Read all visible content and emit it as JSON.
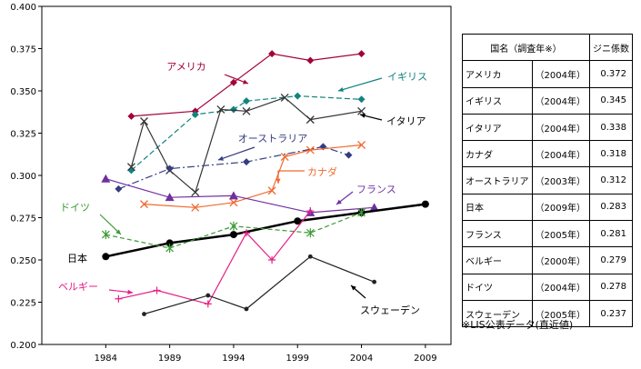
{
  "chart_data": {
    "type": "line",
    "x_ticks": [
      "1984",
      "1989",
      "1994",
      "1999",
      "2004",
      "2009"
    ],
    "y_ticks": [
      "0.200",
      "0.225",
      "0.250",
      "0.275",
      "0.300",
      "0.325",
      "0.350",
      "0.375",
      "0.400"
    ],
    "xlim": [
      1979,
      2011
    ],
    "ylim": [
      0.2,
      0.4
    ],
    "grid": false,
    "series": [
      {
        "name": "アメリカ",
        "color": "#a4003c",
        "marker": "diamond",
        "dash": "",
        "x": [
          1986,
          1991,
          1994,
          1997,
          2000,
          2004
        ],
        "y": [
          0.335,
          0.338,
          0.355,
          0.372,
          0.368,
          0.372
        ]
      },
      {
        "name": "イギリス",
        "color": "#12837f",
        "marker": "diamond",
        "dash": "6,3",
        "x": [
          1986,
          1991,
          1994,
          1995,
          1999,
          2004
        ],
        "y": [
          0.303,
          0.336,
          0.339,
          0.344,
          0.347,
          0.345
        ]
      },
      {
        "name": "イタリア",
        "color": "#333333",
        "marker": "x",
        "dash": "",
        "x": [
          1986,
          1987,
          1989,
          1991,
          1993,
          1995,
          1998,
          2000,
          2004
        ],
        "y": [
          0.305,
          0.332,
          0.303,
          0.29,
          0.339,
          0.338,
          0.346,
          0.333,
          0.338
        ]
      },
      {
        "name": "オーストラリア",
        "color": "#353c80",
        "marker": "diamond",
        "dash": "8,3,2,3",
        "x": [
          1985,
          1989,
          1995,
          2001,
          2003
        ],
        "y": [
          0.292,
          0.304,
          0.308,
          0.317,
          0.312
        ]
      },
      {
        "name": "カナダ",
        "color": "#f0692f",
        "marker": "x",
        "dash": "",
        "x": [
          1987,
          1991,
          1994,
          1997,
          1998,
          2000,
          2004
        ],
        "y": [
          0.283,
          0.281,
          0.284,
          0.291,
          0.311,
          0.315,
          0.318
        ]
      },
      {
        "name": "フランス",
        "color": "#7030a0",
        "marker": "triangle",
        "dash": "",
        "x": [
          1984,
          1989,
          1994,
          2000,
          2005
        ],
        "y": [
          0.298,
          0.287,
          0.288,
          0.278,
          0.281
        ]
      },
      {
        "name": "日本",
        "color": "#000000",
        "marker": "circle",
        "dash": "",
        "width": 2.5,
        "x": [
          1984,
          1989,
          1994,
          1999,
          2004,
          2009
        ],
        "y": [
          0.252,
          0.26,
          0.265,
          0.273,
          0.278,
          0.283
        ]
      },
      {
        "name": "ドイツ",
        "color": "#3b9a34",
        "marker": "star",
        "dash": "5,3",
        "x": [
          1984,
          1989,
          1994,
          2000,
          2004
        ],
        "y": [
          0.265,
          0.257,
          0.27,
          0.266,
          0.278
        ]
      },
      {
        "name": "ベルギー",
        "color": "#e51e87",
        "marker": "plus",
        "dash": "",
        "x": [
          1985,
          1988,
          1992,
          1995,
          1997,
          2000
        ],
        "y": [
          0.227,
          0.232,
          0.224,
          0.266,
          0.25,
          0.279
        ]
      },
      {
        "name": "スウェーデン",
        "color": "#222222",
        "marker": "dot",
        "dash": "",
        "x": [
          1987,
          1992,
          1995,
          2000,
          2005
        ],
        "y": [
          0.218,
          0.229,
          0.221,
          0.252,
          0.237
        ]
      }
    ],
    "annotations": [
      {
        "text": "アメリカ",
        "color": "#a4003c"
      },
      {
        "text": "イギリス",
        "color": "#12837f"
      },
      {
        "text": "イタリア",
        "color": "#000000"
      },
      {
        "text": "オーストラリア",
        "color": "#353c80"
      },
      {
        "text": "カナダ",
        "color": "#f0692f"
      },
      {
        "text": "フランス",
        "color": "#7030a0"
      },
      {
        "text": "ドイツ",
        "color": "#3b9a34"
      },
      {
        "text": "日本",
        "color": "#000000"
      },
      {
        "text": "ベルギー",
        "color": "#e51e87"
      },
      {
        "text": "スウェーデン",
        "color": "#000000"
      }
    ]
  },
  "table": {
    "header": [
      "国名（調査年※）",
      "ジニ係数"
    ],
    "rows": [
      [
        "アメリカ",
        "（2004年）",
        "0.372"
      ],
      [
        "イギリス",
        "（2004年）",
        "0.345"
      ],
      [
        "イタリア",
        "（2004年）",
        "0.338"
      ],
      [
        "カナダ",
        "（2004年）",
        "0.318"
      ],
      [
        "オーストラリア",
        "（2003年）",
        "0.312"
      ],
      [
        "日本",
        "（2009年）",
        "0.283"
      ],
      [
        "フランス",
        "（2005年）",
        "0.281"
      ],
      [
        "ベルギー",
        "（2000年）",
        "0.279"
      ],
      [
        "ドイツ",
        "（2004年）",
        "0.278"
      ],
      [
        "スウェーデン",
        "（2005年）",
        "0.237"
      ]
    ],
    "note": "※LIS公表データ(直近値)"
  }
}
